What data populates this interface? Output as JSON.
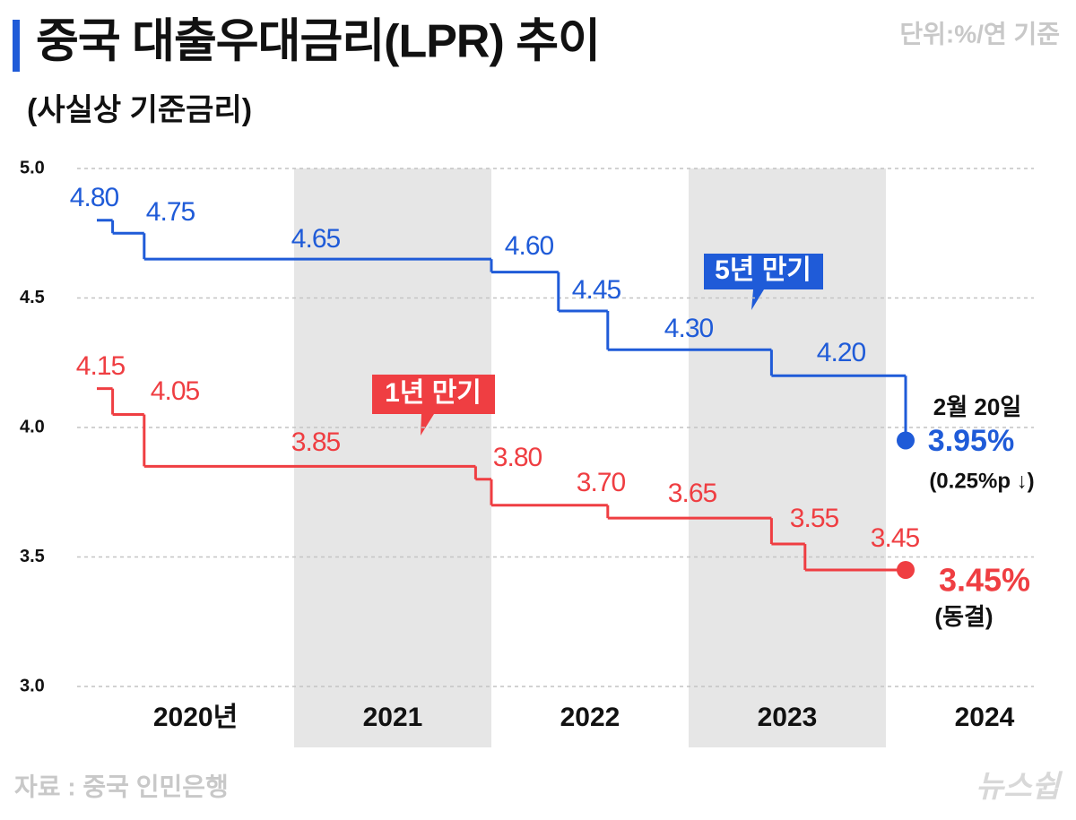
{
  "chart_data": {
    "type": "step",
    "step": "post",
    "title": "중국 대출우대금리(LPR) 추이",
    "subtitle": "(사실상 기준금리)",
    "unit": "단위:%/연 기준",
    "source": "자료 : 중국 인민은행",
    "logo": "뉴스쉽",
    "xlim": [
      2019.9,
      2024.75
    ],
    "xticks": [
      {
        "value": 2020,
        "label": "2020년"
      },
      2021,
      2022,
      2023,
      2024
    ],
    "ylim": [
      3,
      5
    ],
    "yticks": [
      {
        "value": 3,
        "label": "3.0"
      },
      3.5,
      {
        "value": 4,
        "label": "4.0"
      },
      4.5,
      {
        "value": 5,
        "label": "5.0"
      }
    ],
    "grid": true,
    "series": [
      {
        "name": "5년 만기",
        "color": "#1f5bd8",
        "x": [
          2020.0,
          2020.08,
          2020.24,
          2022.0,
          2022.34,
          2022.59,
          2023.42,
          2024.1
        ],
        "values": [
          4.8,
          4.75,
          4.65,
          4.6,
          4.45,
          4.3,
          4.2,
          3.95
        ],
        "value_labels": [
          "4.80",
          "4.75",
          "4.65",
          "4.60",
          "4.45",
          "4.30",
          "4.20",
          "3.95%"
        ]
      },
      {
        "name": "1년 만기",
        "color": "#ef3e42",
        "x": [
          2020.0,
          2020.08,
          2020.24,
          2021.92,
          2022.0,
          2022.59,
          2023.42,
          2023.59,
          2024.1
        ],
        "values": [
          4.15,
          4.05,
          3.85,
          3.8,
          3.7,
          3.65,
          3.55,
          3.45,
          3.45
        ],
        "value_labels": [
          "4.15",
          "4.05",
          "3.85",
          "3.80",
          "3.70",
          "3.65",
          "3.55",
          "3.45",
          "3.45%"
        ]
      }
    ],
    "annotations": [
      "2월 20일",
      "(0.25%p ↓)",
      "(동결)"
    ]
  }
}
